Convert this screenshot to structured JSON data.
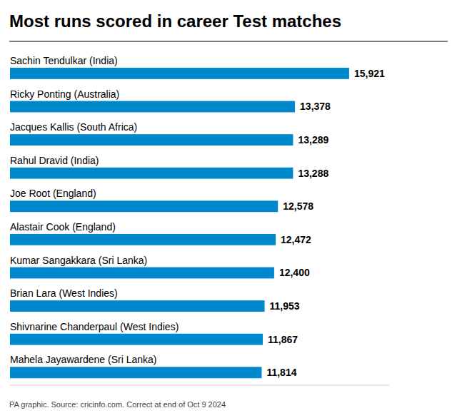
{
  "chart_data": {
    "type": "bar",
    "orientation": "horizontal",
    "title": "Most runs scored in career Test matches",
    "annotations": [
      "PA graphic. Source: cricinfo.com. Correct at end of Oct 9 2024"
    ],
    "categories": [
      "Sachin Tendulkar (India)",
      "Ricky Ponting (Australia)",
      "Jacques Kallis (South Africa)",
      "Rahul Dravid (India)",
      "Joe Root (England)",
      "Alastair Cook (England)",
      "Kumar Sangakkara (Sri Lanka)",
      "Brian Lara (West Indies)",
      "Shivnarine Chanderpaul (West Indies)",
      "Mahela Jayawardene (Sri Lanka)"
    ],
    "values": [
      15921,
      13378,
      13289,
      13288,
      12578,
      12472,
      12400,
      11953,
      11867,
      11814
    ],
    "value_labels": [
      "15,921",
      "13,378",
      "13,289",
      "13,288",
      "12,578",
      "12,472",
      "12,400",
      "11,953",
      "11,867",
      "11,814"
    ],
    "color": "#0088CC",
    "xlim": [
      0,
      17800
    ],
    "data_labels": true,
    "tick_labels": "y"
  }
}
